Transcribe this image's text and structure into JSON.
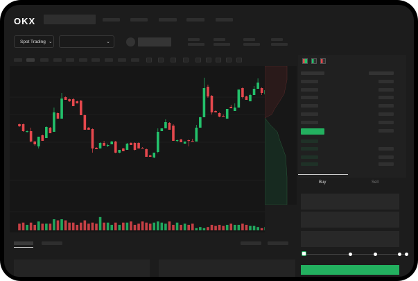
{
  "header": {
    "logo": "OKX"
  },
  "toolbar": {
    "market_select": "Spot Trading",
    "pair_select": ""
  },
  "trade_panel": {
    "tabs": [
      {
        "label": "Buy",
        "active": true
      },
      {
        "label": "Sell",
        "active": false
      }
    ],
    "slider_percent": 0
  },
  "colors": {
    "up": "#23c16b",
    "down": "#e5484d",
    "accent": "#23b05f",
    "background": "#1c1c1c"
  },
  "icons": [
    "chevron-down-icon",
    "orderbook-both-icon",
    "orderbook-bids-icon",
    "orderbook-asks-icon"
  ],
  "chart_data": {
    "type": "candlestick",
    "candles": [
      [
        68,
        69,
        64,
        65,
        6
      ],
      [
        68,
        69,
        57,
        58,
        7
      ],
      [
        57,
        59,
        56,
        58,
        5
      ],
      [
        58,
        63,
        42,
        43,
        7
      ],
      [
        43,
        44,
        37,
        39,
        5
      ],
      [
        36,
        50,
        33,
        50,
        8
      ],
      [
        52,
        53,
        44,
        44,
        6
      ],
      [
        48,
        65,
        48,
        64,
        6
      ],
      [
        63,
        64,
        55,
        55,
        6
      ],
      [
        57,
        92,
        57,
        85,
        10
      ],
      [
        84,
        85,
        76,
        76,
        9
      ],
      [
        76,
        113,
        76,
        105,
        10
      ],
      [
        107,
        108,
        103,
        103,
        9
      ],
      [
        104,
        105,
        100,
        101,
        7
      ],
      [
        104,
        106,
        94,
        94,
        7
      ],
      [
        101,
        102,
        98,
        98,
        5
      ],
      [
        102,
        103,
        81,
        81,
        7
      ],
      [
        81,
        82,
        60,
        60,
        9
      ],
      [
        63,
        64,
        60,
        60,
        6
      ],
      [
        61,
        62,
        27,
        33,
        7
      ],
      [
        34,
        35,
        32,
        32,
        6
      ],
      [
        33,
        42,
        33,
        41,
        12
      ],
      [
        41,
        44,
        37,
        37,
        7
      ],
      [
        37,
        40,
        35,
        38,
        7
      ],
      [
        39,
        44,
        39,
        43,
        5
      ],
      [
        43,
        44,
        26,
        27,
        7
      ],
      [
        27,
        31,
        26,
        31,
        5
      ],
      [
        33,
        34,
        29,
        29,
        7
      ],
      [
        31,
        41,
        31,
        40,
        7
      ],
      [
        41,
        42,
        38,
        38,
        8
      ],
      [
        41,
        42,
        30,
        31,
        5
      ],
      [
        41,
        42,
        33,
        33,
        6
      ],
      [
        34,
        35,
        33,
        33,
        8
      ],
      [
        32,
        33,
        21,
        21,
        7
      ],
      [
        23,
        24,
        21,
        21,
        6
      ],
      [
        20,
        27,
        19,
        27,
        7
      ],
      [
        28,
        62,
        26,
        57,
        8
      ],
      [
        58,
        62,
        58,
        62,
        7
      ],
      [
        62,
        75,
        62,
        71,
        6
      ],
      [
        70,
        71,
        60,
        60,
        8
      ],
      [
        66,
        68,
        44,
        44,
        5
      ],
      [
        44,
        46,
        42,
        45,
        7
      ],
      [
        46,
        47,
        42,
        42,
        5
      ],
      [
        40,
        43,
        40,
        43,
        6
      ],
      [
        45,
        46,
        36,
        44,
        5
      ],
      [
        44,
        47,
        43,
        43,
        6
      ],
      [
        43,
        67,
        43,
        63,
        2
      ],
      [
        63,
        79,
        63,
        78,
        3
      ],
      [
        78,
        135,
        78,
        120,
        2
      ],
      [
        122,
        125,
        106,
        108,
        3
      ],
      [
        109,
        110,
        82,
        85,
        5
      ],
      [
        87,
        88,
        85,
        85,
        4
      ],
      [
        84,
        85,
        78,
        79,
        5
      ],
      [
        80,
        82,
        79,
        79,
        4
      ],
      [
        76,
        90,
        76,
        90,
        5
      ],
      [
        93,
        96,
        91,
        91,
        6
      ],
      [
        87,
        98,
        87,
        92,
        5
      ],
      [
        92,
        118,
        92,
        118,
        5
      ],
      [
        120,
        121,
        105,
        107,
        6
      ],
      [
        108,
        109,
        103,
        103,
        5
      ],
      [
        101,
        112,
        101,
        110,
        4
      ],
      [
        110,
        123,
        110,
        119,
        4
      ],
      [
        119,
        134,
        119,
        128,
        3
      ],
      [
        120,
        121,
        110,
        113,
        2
      ],
      [
        111,
        122,
        111,
        117,
        3
      ]
    ]
  }
}
